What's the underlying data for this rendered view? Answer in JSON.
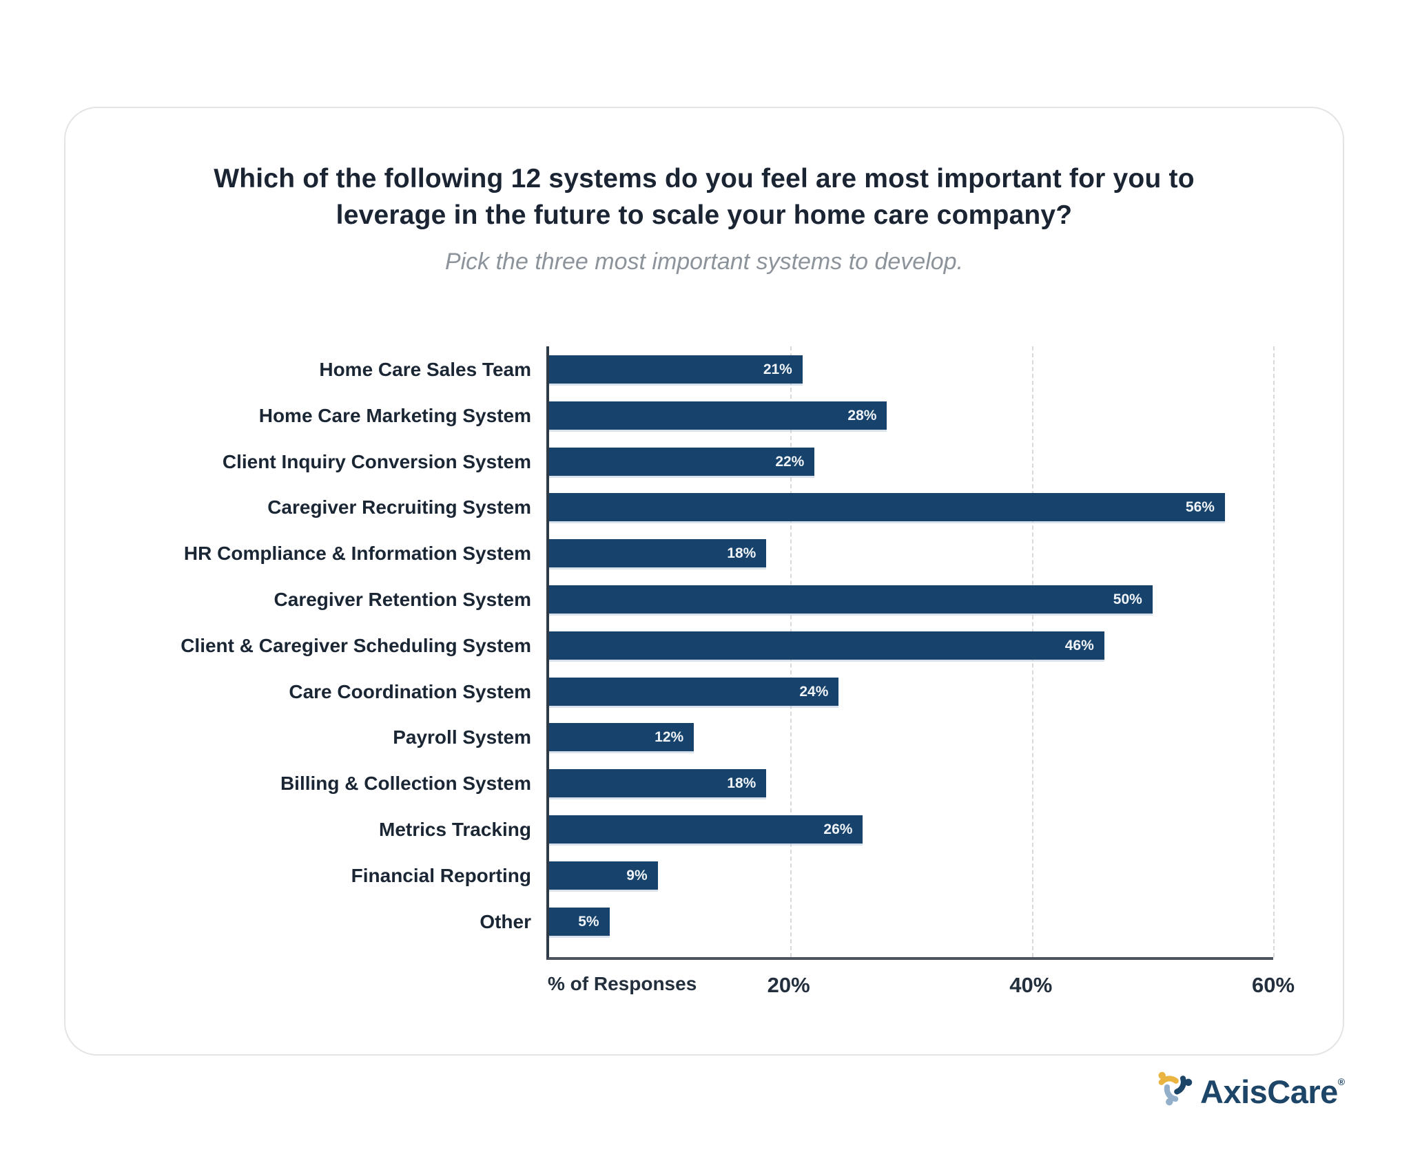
{
  "card": {
    "title_line1": "Which of the following 12 systems do you feel are most important for you to",
    "title_line2": "leverage in the future to scale your home care company?",
    "subtitle": "Pick the three most important systems to develop."
  },
  "chart_data": {
    "type": "bar",
    "orientation": "horizontal",
    "categories": [
      "Home Care Sales Team",
      "Home Care Marketing System",
      "Client Inquiry Conversion System",
      "Caregiver Recruiting System",
      "HR Compliance & Information System",
      "Caregiver Retention System",
      "Client & Caregiver Scheduling System",
      "Care Coordination System",
      "Payroll System",
      "Billing & Collection System",
      "Metrics Tracking",
      "Financial Reporting",
      "Other"
    ],
    "values": [
      21,
      28,
      22,
      56,
      18,
      50,
      46,
      24,
      12,
      18,
      26,
      9,
      5
    ],
    "value_labels": [
      "21%",
      "28%",
      "22%",
      "56%",
      "18%",
      "50%",
      "46%",
      "24%",
      "12%",
      "18%",
      "26%",
      "9%",
      "5%"
    ],
    "xlabel": "% of Responses",
    "x_ticks": [
      "20%",
      "40%",
      "60%"
    ],
    "x_tick_values": [
      20,
      40,
      60
    ],
    "xlim": [
      0,
      60
    ],
    "grid": "dashed-vertical",
    "legend": "none",
    "bar_color": "#16426B",
    "value_label_color": "#F0F4F8",
    "category_label_color": "#1B2634",
    "axis_color": "#2E3A46"
  },
  "footer": {
    "brand": "AxisCare",
    "registered_mark": "®"
  }
}
